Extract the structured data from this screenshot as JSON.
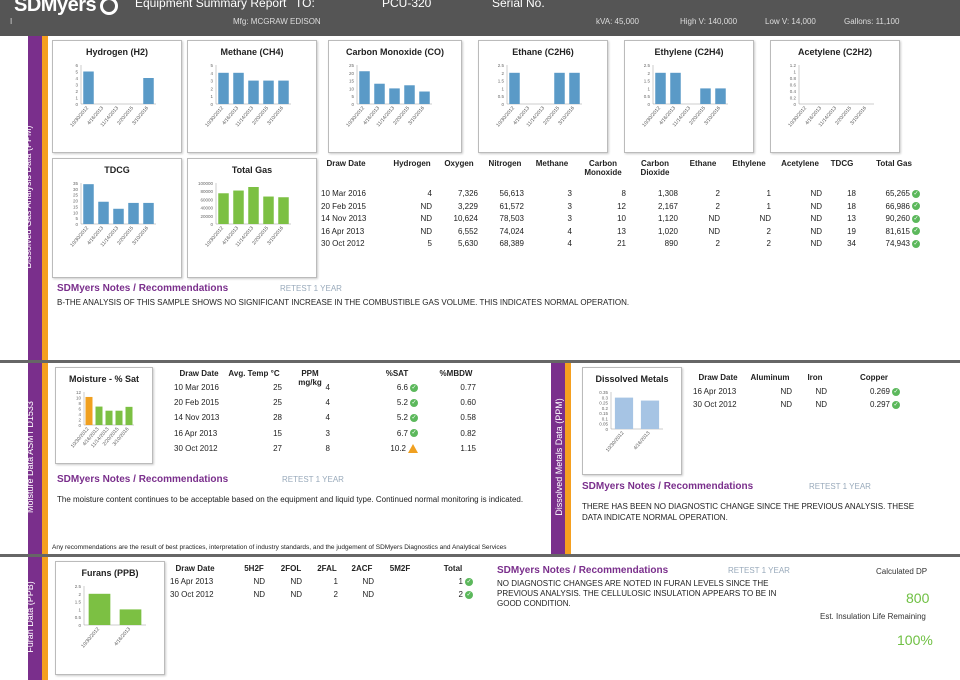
{
  "header": {
    "logo": "SDMyers",
    "title": "Equipment Summary Report",
    "to_label": "TO:",
    "to_value": "PCU-320",
    "serial_label": "Serial No.",
    "mfg": "Mfg: MCGRAW EDISON",
    "kva": "kVA: 45,000",
    "highv": "High V: 140,000",
    "lowv": "Low V: 14,000",
    "gallons": "Gallons: 11,100",
    "left_mark": "I"
  },
  "sections": {
    "dga": "Dissolved Gas Analysis Data (PPM)",
    "moisture": "Moisture Data ASMT D1533",
    "metals": "Dissolved Metals Data (PPM)",
    "furan": "Furan Data (PPB)"
  },
  "chart_data": [
    {
      "type": "bar",
      "title": "Hydrogen (H2)",
      "categories": [
        "10/30/2012",
        "4/16/2013",
        "11/14/2013",
        "2/20/2015",
        "3/10/2016"
      ],
      "values": [
        5,
        0,
        0,
        0,
        4
      ],
      "ylim": [
        0,
        6
      ],
      "ticks": [
        "0",
        "1",
        "2",
        "3",
        "4",
        "5",
        "6"
      ],
      "color": "#5a9ac7"
    },
    {
      "type": "bar",
      "title": "Methane (CH4)",
      "categories": [
        "10/30/2012",
        "4/16/2013",
        "11/14/2013",
        "2/20/2015",
        "3/10/2016"
      ],
      "values": [
        4,
        4,
        3,
        3,
        3
      ],
      "ylim": [
        0,
        5
      ],
      "ticks": [
        "0",
        "1",
        "2",
        "3",
        "4",
        "5"
      ],
      "color": "#5a9ac7"
    },
    {
      "type": "bar",
      "title": "Carbon Monoxide (CO)",
      "categories": [
        "10/30/2012",
        "4/16/2013",
        "11/14/2013",
        "2/20/2015",
        "3/10/2016"
      ],
      "values": [
        21,
        13,
        10,
        12,
        8
      ],
      "ylim": [
        0,
        25
      ],
      "ticks": [
        "0",
        "5",
        "10",
        "15",
        "20",
        "25"
      ],
      "color": "#5a9ac7"
    },
    {
      "type": "bar",
      "title": "Ethane (C2H6)",
      "categories": [
        "10/30/2012",
        "4/16/2013",
        "11/14/2013",
        "2/20/2015",
        "3/10/2016"
      ],
      "values": [
        2,
        0,
        0,
        2,
        2
      ],
      "ylim": [
        0,
        2.5
      ],
      "ticks": [
        "0",
        "0.5",
        "1",
        "1.5",
        "2",
        "2.5"
      ],
      "color": "#5a9ac7"
    },
    {
      "type": "bar",
      "title": "Ethylene (C2H4)",
      "categories": [
        "10/30/2012",
        "4/16/2013",
        "11/14/2013",
        "2/20/2015",
        "3/10/2016"
      ],
      "values": [
        2,
        2,
        0,
        1,
        1
      ],
      "ylim": [
        0,
        2.5
      ],
      "ticks": [
        "0",
        "0.5",
        "1",
        "1.5",
        "2",
        "2.5"
      ],
      "color": "#5a9ac7"
    },
    {
      "type": "bar",
      "title": "Acetylene (C2H2)",
      "categories": [
        "10/30/2012",
        "4/16/2013",
        "11/14/2013",
        "2/20/2015",
        "3/10/2016"
      ],
      "values": [
        0,
        0,
        0,
        0,
        0
      ],
      "ylim": [
        0,
        1.2
      ],
      "ticks": [
        "0",
        "0.2",
        "0.4",
        "0.6",
        "0.8",
        "1",
        "1.2"
      ],
      "color": "#5a9ac7"
    },
    {
      "type": "bar",
      "title": "TDCG",
      "categories": [
        "10/30/2012",
        "4/16/2013",
        "11/14/2013",
        "2/20/2015",
        "3/10/2016"
      ],
      "values": [
        34,
        19,
        13,
        18,
        18
      ],
      "ylim": [
        0,
        35
      ],
      "ticks": [
        "0",
        "5",
        "10",
        "15",
        "20",
        "25",
        "30",
        "35"
      ],
      "color": "#5a9ac7"
    },
    {
      "type": "bar",
      "title": "Total Gas",
      "categories": [
        "10/30/2012",
        "4/16/2013",
        "11/14/2013",
        "2/20/2015",
        "3/10/2016"
      ],
      "values": [
        74943,
        81615,
        90260,
        66986,
        65265
      ],
      "ylim": [
        0,
        100000
      ],
      "ticks": [
        "0",
        "20000",
        "40000",
        "60000",
        "80000",
        "100000"
      ],
      "color": "#7cc043"
    },
    {
      "type": "bar",
      "title": "Moisture - % Sat",
      "categories": [
        "10/30/2012",
        "4/16/2013",
        "11/14/2013",
        "2/20/2015",
        "3/10/2016"
      ],
      "values": [
        10.2,
        6.7,
        5.2,
        5.2,
        6.6
      ],
      "ylim": [
        0,
        12
      ],
      "ticks": [
        "0",
        "2",
        "4",
        "6",
        "8",
        "10",
        "12"
      ],
      "colors": [
        "#f0a020",
        "#7cc043",
        "#7cc043",
        "#7cc043",
        "#7cc043"
      ]
    },
    {
      "type": "bar",
      "title": "Dissolved Metals",
      "categories": [
        "10/30/2012",
        "4/16/2013"
      ],
      "values": [
        0.297,
        0.269
      ],
      "ylim": [
        0,
        0.35
      ],
      "ticks": [
        "0",
        "0.05",
        "0.1",
        "0.15",
        "0.2",
        "0.25",
        "0.3",
        "0.35"
      ],
      "color": "#a6c4e4"
    },
    {
      "type": "bar",
      "title": "Furans (PPB)",
      "categories": [
        "10/30/2012",
        "4/16/2013"
      ],
      "values": [
        2,
        1
      ],
      "ylim": [
        0,
        2.5
      ],
      "ticks": [
        "0",
        "0.5",
        "1",
        "1.5",
        "2",
        "2.5"
      ],
      "color": "#7cc043"
    }
  ],
  "dga_table": {
    "headers": [
      "Draw Date",
      "Hydrogen",
      "Oxygen",
      "Nitrogen",
      "Methane",
      "Carbon Monoxide",
      "Carbon Dioxide",
      "Ethane",
      "Ethylene",
      "Acetylene",
      "TDCG",
      "Total Gas"
    ],
    "rows": [
      [
        "10 Mar 2016",
        "4",
        "7,326",
        "56,613",
        "3",
        "8",
        "1,308",
        "2",
        "1",
        "ND",
        "18",
        "65,265"
      ],
      [
        "20 Feb 2015",
        "ND",
        "3,229",
        "61,572",
        "3",
        "12",
        "2,167",
        "2",
        "1",
        "ND",
        "18",
        "66,986"
      ],
      [
        "14 Nov 2013",
        "ND",
        "10,624",
        "78,503",
        "3",
        "10",
        "1,120",
        "ND",
        "ND",
        "ND",
        "13",
        "90,260"
      ],
      [
        "16 Apr 2013",
        "ND",
        "6,552",
        "74,024",
        "4",
        "13",
        "1,020",
        "ND",
        "2",
        "ND",
        "19",
        "81,615"
      ],
      [
        "30 Oct 2012",
        "5",
        "5,630",
        "68,389",
        "4",
        "21",
        "890",
        "2",
        "2",
        "ND",
        "34",
        "74,943"
      ]
    ]
  },
  "dga_notes": {
    "title": "SDMyers Notes / Recommendations",
    "retest": "RETEST 1 YEAR",
    "text": "B-THE ANALYSIS OF THIS SAMPLE SHOWS NO SIGNIFICANT INCREASE IN THE COMBUSTIBLE GAS VOLUME. THIS INDICATES NORMAL OPERATION."
  },
  "moisture_table": {
    "headers": [
      "Draw Date",
      "Avg. Temp °C",
      "PPM mg/kg",
      "%SAT",
      "%MBDW"
    ],
    "rows": [
      [
        "10 Mar 2016",
        "25",
        "4",
        "6.6",
        "0.77"
      ],
      [
        "20 Feb 2015",
        "25",
        "4",
        "5.2",
        "0.60"
      ],
      [
        "14 Nov 2013",
        "28",
        "4",
        "5.2",
        "0.58"
      ],
      [
        "16 Apr 2013",
        "15",
        "3",
        "6.7",
        "0.82"
      ],
      [
        "30 Oct 2012",
        "27",
        "8",
        "10.2",
        "1.15"
      ]
    ]
  },
  "moisture_notes": {
    "title": "SDMyers Notes / Recommendations",
    "retest": "RETEST 1 YEAR",
    "text": "The moisture content continues to be acceptable based on the equipment and liquid type. Continued normal monitoring is indicated.",
    "footer": "Any recommendations are the result of best practices, interpretation of industry standards, and the judgement of SDMyers Diagnostics and Analytical Services"
  },
  "metals_table": {
    "headers": [
      "Draw Date",
      "Aluminum",
      "Iron",
      "Copper"
    ],
    "rows": [
      [
        "16 Apr 2013",
        "ND",
        "ND",
        "0.269"
      ],
      [
        "30 Oct 2012",
        "ND",
        "ND",
        "0.297"
      ]
    ]
  },
  "metals_notes": {
    "title": "SDMyers Notes / Recommendations",
    "retest": "RETEST 1 YEAR",
    "text": "THERE HAS BEEN NO DIAGNOSTIC CHANGE SINCE THE PREVIOUS ANALYSIS. THESE DATA INDICATE NORMAL OPERATION."
  },
  "furan_table": {
    "headers": [
      "Draw Date",
      "5H2F",
      "2FOL",
      "2FAL",
      "2ACF",
      "5M2F",
      "Total"
    ],
    "rows": [
      [
        "16 Apr 2013",
        "ND",
        "ND",
        "1",
        "ND",
        "",
        "1"
      ],
      [
        "30 Oct 2012",
        "ND",
        "ND",
        "2",
        "ND",
        "",
        "2"
      ]
    ]
  },
  "furan_notes": {
    "title": "SDMyers Notes / Recommendations",
    "retest": "RETEST 1 YEAR",
    "text": "NO DIAGNOSTIC CHANGES ARE NOTED IN FURAN LEVELS SINCE THE PREVIOUS ANALYSIS. THE CELLULOSIC INSULATION APPEARS TO BE IN GOOD CONDITION."
  },
  "furan_side": {
    "dp_label": "Calculated DP",
    "dp_value": "800",
    "life_label": "Est. Insulation Life Remaining",
    "life_value": "100%"
  }
}
